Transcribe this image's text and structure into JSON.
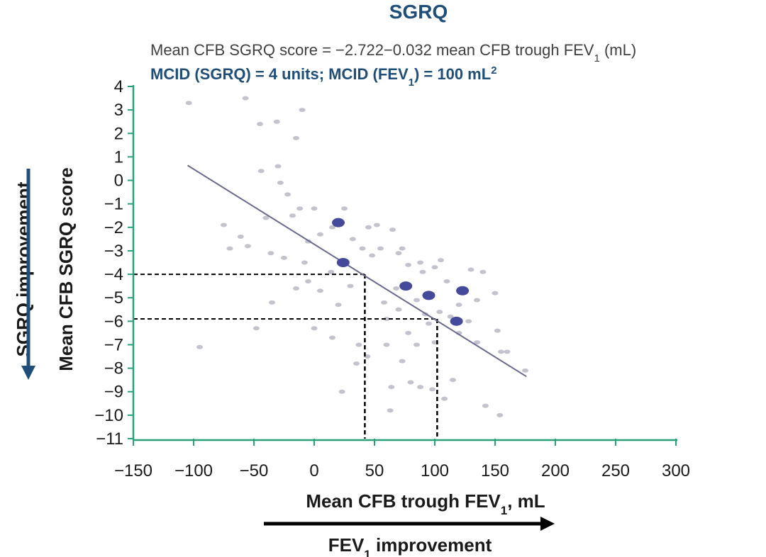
{
  "chart_data": {
    "type": "scatter",
    "title": "SGRQ",
    "equation": {
      "main": "Mean CFB SGRQ score = −2.722−0.032 mean CFB trough FEV",
      "sub": "1",
      "tail": " (mL)"
    },
    "mcid": {
      "part1": "MCID (SGRQ) = 4 units; MCID (FEV",
      "sub": "1",
      "part2": ") = 100 mL",
      "sup": "2"
    },
    "xlabel": {
      "main": "Mean CFB trough FEV",
      "sub": "1",
      "tail": ", mL"
    },
    "ylabel": "Mean CFB SGRQ score",
    "x_direction_label": {
      "main": "FEV",
      "sub": "1",
      "tail": " improvement"
    },
    "y_direction_label": "SGRQ improvement",
    "xlim": [
      -150,
      300
    ],
    "ylim": [
      -11,
      4
    ],
    "x_ticks": [
      -150,
      -100,
      -50,
      0,
      50,
      100,
      150,
      200,
      250,
      300
    ],
    "y_ticks": [
      4,
      3,
      2,
      1,
      0,
      -1,
      -2,
      -3,
      -4,
      -5,
      -6,
      -7,
      -8,
      -9,
      -10,
      -11
    ],
    "regression_line": {
      "x_start": -105,
      "x_end": 176,
      "intercept": -2.722,
      "slope": -0.032
    },
    "reference_lines": [
      {
        "x": 42,
        "y": -4
      },
      {
        "x": 102,
        "y": -5.9
      }
    ],
    "highlight_points": [
      {
        "x": 20,
        "y": -1.8
      },
      {
        "x": 24,
        "y": -3.5
      },
      {
        "x": 76,
        "y": -4.5
      },
      {
        "x": 95,
        "y": -4.9
      },
      {
        "x": 123,
        "y": -4.7
      },
      {
        "x": 118,
        "y": -6.0
      }
    ],
    "points": [
      {
        "x": -104,
        "y": 3.3
      },
      {
        "x": -57,
        "y": 3.5
      },
      {
        "x": -31,
        "y": 2.5
      },
      {
        "x": -45,
        "y": 2.4
      },
      {
        "x": -15,
        "y": 1.8
      },
      {
        "x": -10,
        "y": 3.0
      },
      {
        "x": -30,
        "y": 0.6
      },
      {
        "x": -44,
        "y": 0.4
      },
      {
        "x": -28,
        "y": -0.1
      },
      {
        "x": -22,
        "y": -0.6
      },
      {
        "x": -12,
        "y": -1.2
      },
      {
        "x": -40,
        "y": -1.6
      },
      {
        "x": -75,
        "y": -1.9
      },
      {
        "x": -61,
        "y": -2.4
      },
      {
        "x": -70,
        "y": -2.9
      },
      {
        "x": -55,
        "y": -2.8
      },
      {
        "x": -36,
        "y": -3.1
      },
      {
        "x": -18,
        "y": -1.5
      },
      {
        "x": 0,
        "y": -1.2
      },
      {
        "x": -5,
        "y": -2.6
      },
      {
        "x": 5,
        "y": -2.3
      },
      {
        "x": 15,
        "y": -2.0
      },
      {
        "x": 25,
        "y": -1.2
      },
      {
        "x": 32,
        "y": -2.5
      },
      {
        "x": 40,
        "y": -2.9
      },
      {
        "x": 48,
        "y": -3.2
      },
      {
        "x": 55,
        "y": -2.9
      },
      {
        "x": 52,
        "y": -1.9
      },
      {
        "x": 65,
        "y": -2.1
      },
      {
        "x": 73,
        "y": -2.9
      },
      {
        "x": 70,
        "y": -3.1
      },
      {
        "x": 78,
        "y": -3.6
      },
      {
        "x": 88,
        "y": -3.5
      },
      {
        "x": 90,
        "y": -3.9
      },
      {
        "x": 100,
        "y": -3.7
      },
      {
        "x": 110,
        "y": -4.3
      },
      {
        "x": 130,
        "y": -3.8
      },
      {
        "x": 140,
        "y": -3.9
      },
      {
        "x": 85,
        "y": -5.1
      },
      {
        "x": 70,
        "y": -5.5
      },
      {
        "x": 60,
        "y": -5.9
      },
      {
        "x": 92,
        "y": -5.7
      },
      {
        "x": 104,
        "y": -5.6
      },
      {
        "x": 113,
        "y": -5.8
      },
      {
        "x": 128,
        "y": -6.0
      },
      {
        "x": 95,
        "y": -6.1
      },
      {
        "x": 78,
        "y": -6.5
      },
      {
        "x": 85,
        "y": -7.0
      },
      {
        "x": 100,
        "y": -6.9
      },
      {
        "x": 120,
        "y": -6.5
      },
      {
        "x": 135,
        "y": -6.9
      },
      {
        "x": 152,
        "y": -6.4
      },
      {
        "x": 155,
        "y": -7.3
      },
      {
        "x": 60,
        "y": -7.0
      },
      {
        "x": 37,
        "y": -7.0
      },
      {
        "x": 35,
        "y": -7.8
      },
      {
        "x": 44,
        "y": -7.5
      },
      {
        "x": 73,
        "y": -7.7
      },
      {
        "x": 80,
        "y": -8.6
      },
      {
        "x": 88,
        "y": -8.8
      },
      {
        "x": 64,
        "y": -8.8
      },
      {
        "x": 23,
        "y": -9.0
      },
      {
        "x": 63,
        "y": -9.8
      },
      {
        "x": 108,
        "y": -9.3
      },
      {
        "x": 142,
        "y": -9.6
      },
      {
        "x": 154,
        "y": -10.0
      },
      {
        "x": 115,
        "y": -8.5
      },
      {
        "x": 98,
        "y": -8.9
      },
      {
        "x": 15,
        "y": -6.7
      },
      {
        "x": -5,
        "y": -4.3
      },
      {
        "x": 0,
        "y": -6.3
      },
      {
        "x": -48,
        "y": -6.3
      },
      {
        "x": -35,
        "y": -5.2
      },
      {
        "x": -95,
        "y": -7.1
      },
      {
        "x": -15,
        "y": -4.6
      },
      {
        "x": -8,
        "y": -3.5
      },
      {
        "x": 14,
        "y": -3.9
      },
      {
        "x": 5,
        "y": -4.7
      },
      {
        "x": 58,
        "y": -5.2
      },
      {
        "x": 175,
        "y": -8.1
      },
      {
        "x": 160,
        "y": -7.3
      },
      {
        "x": 68,
        "y": -4.6
      },
      {
        "x": 135,
        "y": -5.1
      },
      {
        "x": 150,
        "y": -4.8
      },
      {
        "x": 105,
        "y": -3.4
      },
      {
        "x": 30,
        "y": -4.5
      },
      {
        "x": 20,
        "y": -5.3
      },
      {
        "x": -25,
        "y": -3.3
      },
      {
        "x": 120,
        "y": -5.3
      },
      {
        "x": 45,
        "y": -2.0
      }
    ]
  }
}
